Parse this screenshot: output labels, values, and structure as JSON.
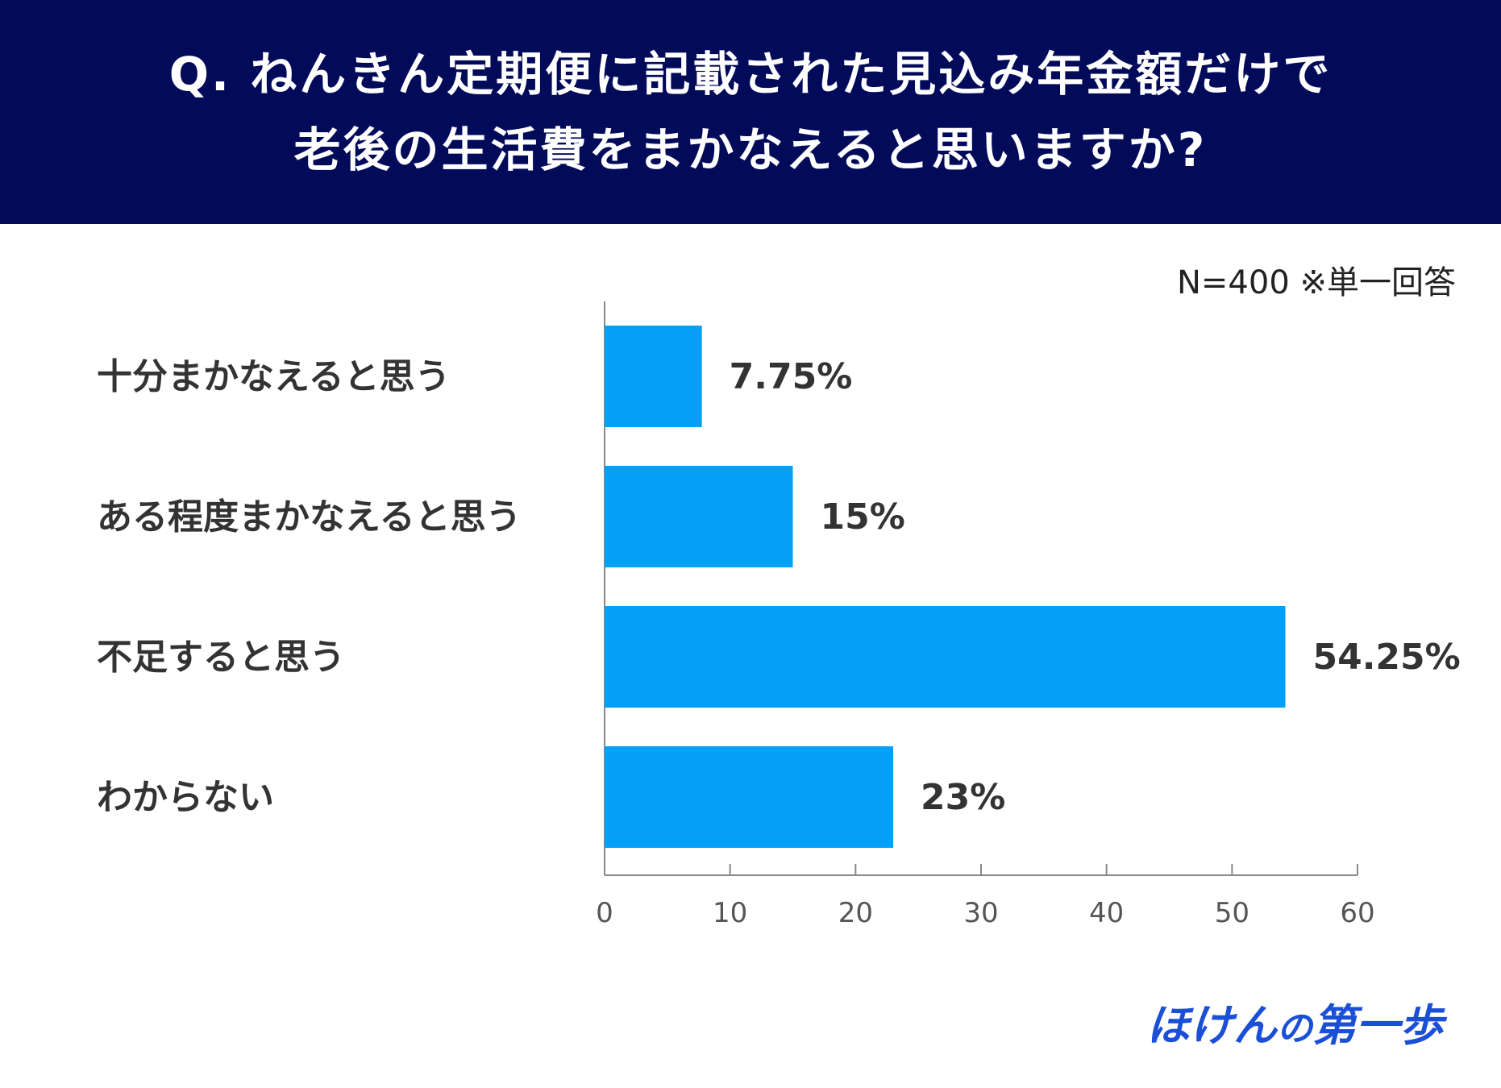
{
  "header": {
    "title_line1": "Q. ねんきん定期便に記載された見込み年金額だけで",
    "title_line2": "老後の生活費をまかなえると思いますか?"
  },
  "note": "N=400 ※単一回答",
  "brand": {
    "part1": "ほけん",
    "part2": "の",
    "part3": "第一歩"
  },
  "colors": {
    "header_bg": "#020a5a",
    "bar": "#069ff8",
    "brand": "#1b4fd6"
  },
  "chart_data": {
    "type": "bar",
    "orientation": "horizontal",
    "categories": [
      "十分まかなえると思う",
      "ある程度まかなえると思う",
      "不足すると思う",
      "わからない"
    ],
    "values": [
      7.75,
      15,
      54.25,
      23
    ],
    "value_labels": [
      "7.75%",
      "15%",
      "54.25%",
      "23%"
    ],
    "xlim": [
      0,
      60
    ],
    "xticks": [
      0,
      10,
      20,
      30,
      40,
      50,
      60
    ],
    "grid": false
  }
}
